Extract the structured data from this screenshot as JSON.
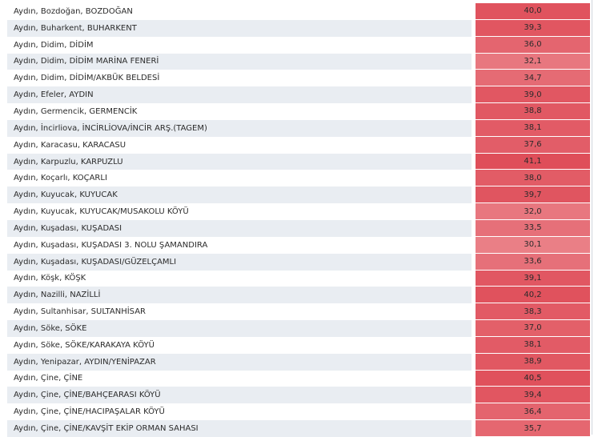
{
  "rows": [
    {
      "location": "Aydın, Bozdoğan, BOZDOĞAN",
      "value": "40,0",
      "color": "#e0535e"
    },
    {
      "location": "Aydın, Buharkent, BUHARKENT",
      "value": "39,3",
      "color": "#e15661"
    },
    {
      "location": "Aydın, Didim, DİDİM",
      "value": "36,0",
      "color": "#e4656f"
    },
    {
      "location": "Aydın, Didim, DİDİM MARİNA FENERİ",
      "value": "32,1",
      "color": "#e8777f"
    },
    {
      "location": "Aydın, Didim, DİDİM/AKBÜK BELDESİ",
      "value": "34,7",
      "color": "#e56b74"
    },
    {
      "location": "Aydın, Efeler, AYDIN",
      "value": "39,0",
      "color": "#e15762"
    },
    {
      "location": "Aydın, Germencik, GERMENCİK",
      "value": "38,8",
      "color": "#e15863"
    },
    {
      "location": "Aydın, İncirliova, İNCİRLİOVA/İNCİR ARŞ.(TAGEM)",
      "value": "38,1",
      "color": "#e25b66"
    },
    {
      "location": "Aydın, Karacasu, KARACASU",
      "value": "37,6",
      "color": "#e25d68"
    },
    {
      "location": "Aydın, Karpuzlu, KARPUZLU",
      "value": "41,1",
      "color": "#df4e59"
    },
    {
      "location": "Aydın, Koçarlı, KOÇARLI",
      "value": "38,0",
      "color": "#e25c66"
    },
    {
      "location": "Aydın, Kuyucak, KUYUCAK",
      "value": "39,7",
      "color": "#e05560"
    },
    {
      "location": "Aydın, Kuyucak, KUYUCAK/MUSAKOLU KÖYÜ",
      "value": "32,0",
      "color": "#e8777f"
    },
    {
      "location": "Aydın, Kuşadası, KUŞADASI",
      "value": "33,5",
      "color": "#e67079"
    },
    {
      "location": "Aydın, Kuşadası, KUŞADASI 3. NOLU ŞAMANDIRA",
      "value": "30,1",
      "color": "#ea7f86"
    },
    {
      "location": "Aydın, Kuşadası, KUŞADASI/GÜZELÇAMLI",
      "value": "33,6",
      "color": "#e67079"
    },
    {
      "location": "Aydın, Köşk, KÖŞK",
      "value": "39,1",
      "color": "#e15762"
    },
    {
      "location": "Aydın, Nazilli, NAZİLLİ",
      "value": "40,2",
      "color": "#e0525d"
    },
    {
      "location": "Aydın, Sultanhisar, SULTANHİSAR",
      "value": "38,3",
      "color": "#e25a65"
    },
    {
      "location": "Aydın, Söke, SÖKE",
      "value": "37,0",
      "color": "#e36069"
    },
    {
      "location": "Aydın, Söke, SÖKE/KARAKAYA KÖYÜ",
      "value": "38,1",
      "color": "#e25b66"
    },
    {
      "location": "Aydın, Yenipazar, AYDIN/YENİPAZAR",
      "value": "38,9",
      "color": "#e15862"
    },
    {
      "location": "Aydın, Çine, ÇİNE",
      "value": "40,5",
      "color": "#e0515c"
    },
    {
      "location": "Aydın, Çine, ÇİNE/BAHÇEARASI KÖYÜ",
      "value": "39,4",
      "color": "#e15661"
    },
    {
      "location": "Aydın, Çine, ÇİNE/HACIPAŞALAR KÖYÜ",
      "value": "36,4",
      "color": "#e4646e"
    },
    {
      "location": "Aydın, Çine, ÇİNE/KAVŞİT EKİP ORMAN SAHASI",
      "value": "35,7",
      "color": "#e56770"
    }
  ]
}
